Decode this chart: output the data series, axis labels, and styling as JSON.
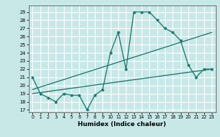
{
  "xlabel": "Humidex (Indice chaleur)",
  "bg_color": "#c8e8e8",
  "line_color": "#1a7a6e",
  "grid_color": "#ffffff",
  "xlim": [
    -0.5,
    23.5
  ],
  "ylim": [
    16.7,
    29.8
  ],
  "yticks": [
    17,
    18,
    19,
    20,
    21,
    22,
    23,
    24,
    25,
    26,
    27,
    28,
    29
  ],
  "xticks": [
    0,
    1,
    2,
    3,
    4,
    5,
    6,
    7,
    8,
    9,
    10,
    11,
    12,
    13,
    14,
    15,
    16,
    17,
    18,
    19,
    20,
    21,
    22,
    23
  ],
  "line1_x": [
    0,
    1,
    2,
    3,
    4,
    5,
    6,
    7,
    8,
    9,
    10,
    11,
    12,
    13,
    14,
    15,
    16,
    17,
    18,
    19,
    20,
    21,
    22,
    23
  ],
  "line1_y": [
    21,
    19,
    18.5,
    18,
    19,
    18.8,
    18.8,
    17,
    18.8,
    19.5,
    24,
    26.5,
    22,
    29,
    29,
    29,
    28,
    27,
    26.5,
    25.5,
    22.5,
    21,
    22,
    22
  ],
  "line2_x": [
    0,
    23
  ],
  "line2_y": [
    19.5,
    26.5
  ],
  "line3_x": [
    0,
    23
  ],
  "line3_y": [
    19.0,
    22.0
  ]
}
